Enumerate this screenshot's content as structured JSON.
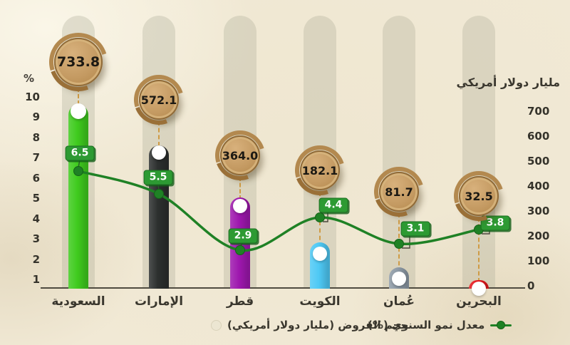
{
  "left_axis_unit": "%",
  "right_axis_title": "مليار دولار أمريكي",
  "legend": {
    "loans_label": "حجم القروض (مليار دولار أمريكي)",
    "growth_label": "معدل نمو السنوي (%)"
  },
  "chart_data": {
    "type": "bar",
    "categories": [
      "السعودية",
      "الإمارات",
      "قطر",
      "الكويت",
      "عُمان",
      "البحرين"
    ],
    "series": [
      {
        "name": "حجم القروض (مليار دولار أمريكي)",
        "type": "bar",
        "unit": "مليار دولار أمريكي",
        "values": [
          733.8,
          572.1,
          364.0,
          182.1,
          81.7,
          32.5
        ],
        "labels": [
          "733.8",
          "572.1",
          "364.0",
          "182.1",
          "81.7",
          "32.5"
        ]
      },
      {
        "name": "معدل نمو السنوي (%)",
        "type": "line",
        "unit": "%",
        "values": [
          6.5,
          5.5,
          2.9,
          4.4,
          3.1,
          3.8
        ],
        "labels": [
          "6.5",
          "5.5",
          "2.9",
          "4.4",
          "3.1",
          "3.8"
        ]
      }
    ],
    "bar_colors": [
      "#3fcb1e",
      "#2c2f2e",
      "#9e17ae",
      "#4ec9f5",
      "#8d9aa6",
      "#e7181d"
    ],
    "line_color": "#1f8125",
    "left_axis": {
      "unit": "%",
      "ticks": [
        10,
        9,
        8,
        7,
        6,
        5,
        4,
        3,
        2,
        1
      ],
      "min": 1,
      "max": 10
    },
    "right_axis": {
      "label": "مليار دولار أمريكي",
      "ticks": [
        700,
        600,
        500,
        400,
        300,
        200,
        100,
        0
      ],
      "min": 0,
      "max": 700
    },
    "legend_position": "bottom",
    "grid": false
  },
  "colors": {
    "background": "#f1e9d5",
    "track": "#e3e0d1",
    "coin_face": "#c49a62",
    "coin_ring": "#9a7038",
    "badge_green": "#2d9a33",
    "dashed_connector": "#cf9b45",
    "axis_text": "#35332b"
  }
}
